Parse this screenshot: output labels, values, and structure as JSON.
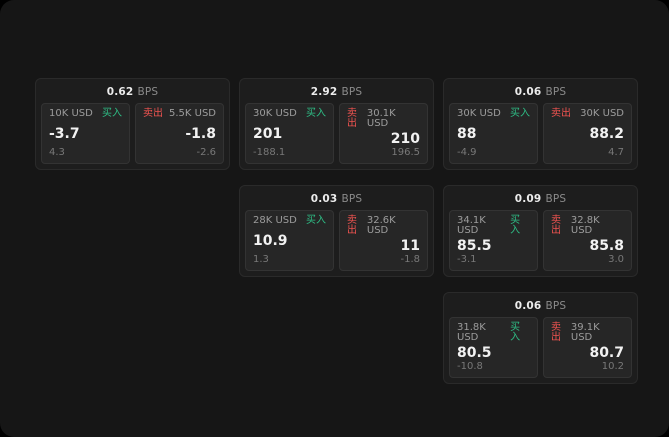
{
  "colors": {
    "buy": "#2ebd85",
    "sell": "#ef5350",
    "surface": "#161616",
    "card": "#1d1d1d"
  },
  "cards": [
    {
      "bps_value": "0.62",
      "bps_unit": "BPS",
      "buy": {
        "size": "10K USD",
        "action": "买入",
        "price": "-3.7",
        "delta": "4.3"
      },
      "sell": {
        "action": "卖出",
        "size": "5.5K USD",
        "price": "-1.8",
        "delta": "-2.6"
      }
    },
    {
      "bps_value": "2.92",
      "bps_unit": "BPS",
      "buy": {
        "size": "30K USD",
        "action": "买入",
        "price": "201",
        "delta": "-188.1"
      },
      "sell": {
        "action": "卖出",
        "size": "30.1K USD",
        "price": "210",
        "delta": "196.5"
      }
    },
    {
      "bps_value": "0.06",
      "bps_unit": "BPS",
      "buy": {
        "size": "30K USD",
        "action": "买入",
        "price": "88",
        "delta": "-4.9"
      },
      "sell": {
        "action": "卖出",
        "size": "30K USD",
        "price": "88.2",
        "delta": "4.7"
      }
    },
    {
      "bps_value": "0.03",
      "bps_unit": "BPS",
      "buy": {
        "size": "28K USD",
        "action": "买入",
        "price": "10.9",
        "delta": "1.3"
      },
      "sell": {
        "action": "卖出",
        "size": "32.6K USD",
        "price": "11",
        "delta": "-1.8"
      }
    },
    {
      "bps_value": "0.09",
      "bps_unit": "BPS",
      "buy": {
        "size": "34.1K USD",
        "action": "买入",
        "price": "85.5",
        "delta": "-3.1"
      },
      "sell": {
        "action": "卖出",
        "size": "32.8K USD",
        "price": "85.8",
        "delta": "3.0"
      }
    },
    {
      "bps_value": "0.06",
      "bps_unit": "BPS",
      "buy": {
        "size": "31.8K USD",
        "action": "买入",
        "price": "80.5",
        "delta": "-10.8"
      },
      "sell": {
        "action": "卖出",
        "size": "39.1K USD",
        "price": "80.7",
        "delta": "10.2"
      }
    }
  ]
}
